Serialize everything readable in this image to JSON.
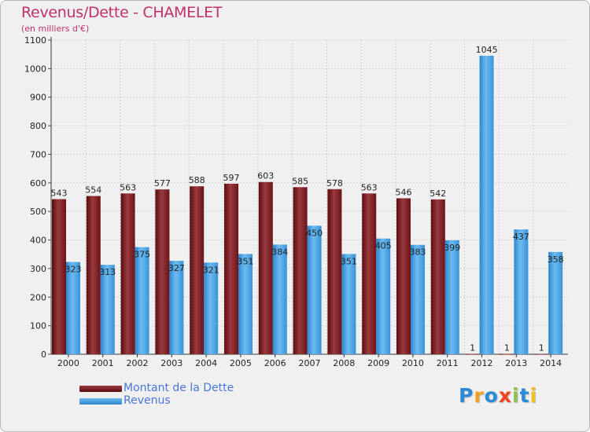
{
  "chart_data": {
    "type": "bar",
    "title": "Revenus/Dette - CHAMELET",
    "subtitle": "(en milliers d'€)",
    "categories": [
      "2000",
      "2001",
      "2002",
      "2003",
      "2004",
      "2005",
      "2006",
      "2007",
      "2008",
      "2009",
      "2010",
      "2011",
      "2012",
      "2013",
      "2014"
    ],
    "series": [
      {
        "name": "Montant de la Dette",
        "color": "#7a1f24",
        "values": [
          543,
          554,
          563,
          577,
          588,
          597,
          603,
          585,
          578,
          563,
          546,
          542,
          1,
          1,
          1
        ],
        "labels": [
          "543",
          "554",
          "563",
          "577",
          "588",
          "597",
          "603",
          "585",
          "578",
          "563",
          "546",
          "542",
          "1",
          "1",
          "1"
        ]
      },
      {
        "name": "Revenus",
        "color": "#4da6e8",
        "values": [
          323,
          313,
          375,
          327,
          321,
          351,
          384,
          450,
          351,
          405,
          383,
          399,
          1045,
          437,
          358
        ],
        "labels": [
          "323",
          "313",
          "375",
          "327",
          "321",
          "351",
          "384",
          "450",
          "351",
          "405",
          "383",
          "399",
          "",
          "437",
          "358"
        ]
      }
    ],
    "ylim": [
      0,
      1100
    ],
    "yticks": [
      0,
      100,
      200,
      300,
      400,
      500,
      600,
      700,
      800,
      900,
      1000,
      1100
    ],
    "ytick_labels": [
      "0",
      "100",
      "200",
      "300",
      "400",
      "500",
      "600",
      "700",
      "800",
      "900",
      "1000",
      "1100"
    ],
    "extra_labels": [
      {
        "category_index": 12,
        "text": "1045"
      }
    ],
    "grid": true,
    "legend_position": "bottom-left"
  },
  "brand": {
    "letters": [
      {
        "char": "P",
        "color": "#2a8ad8"
      },
      {
        "char": "r",
        "color": "#f0a020"
      },
      {
        "char": "o",
        "color": "#2a8ad8"
      },
      {
        "char": "x",
        "color": "#ee4422"
      },
      {
        "char": "i",
        "color": "#8bc34a"
      },
      {
        "char": "t",
        "color": "#2a8ad8"
      },
      {
        "char": "i",
        "color": "#f0c020"
      }
    ]
  }
}
